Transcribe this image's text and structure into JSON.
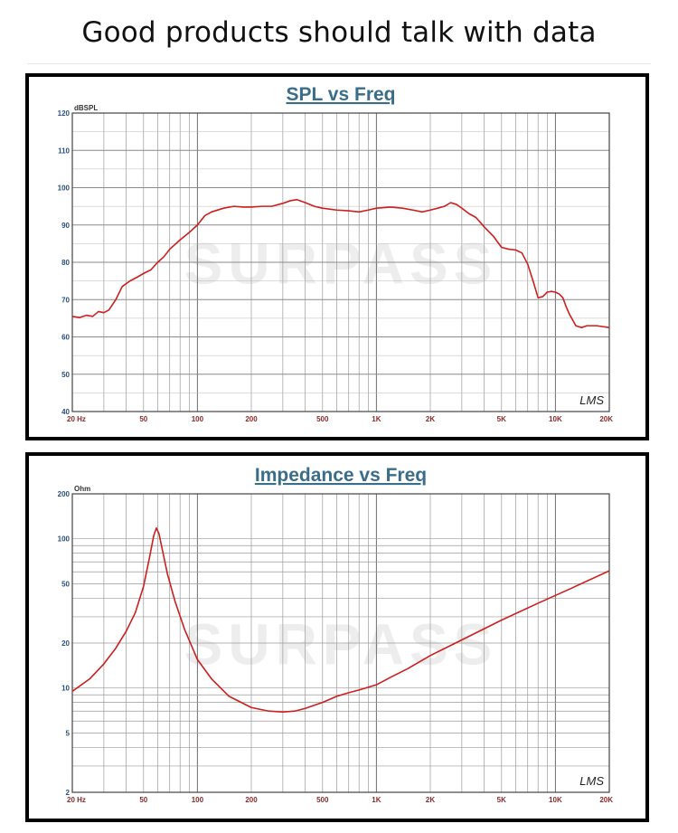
{
  "page": {
    "headline": "Good products should talk with data"
  },
  "watermark": {
    "text": "SURPASS"
  },
  "chart_data": [
    {
      "type": "line",
      "title": "SPL vs Freq",
      "ylabel": "dBSPL",
      "xlabel": "",
      "xscale": "log",
      "xlim": [
        20,
        20000
      ],
      "ylim": [
        40,
        120
      ],
      "grid": true,
      "brand_mark": "LMS",
      "xticks": [
        {
          "v": 20,
          "label": "20 Hz"
        },
        {
          "v": 50,
          "label": "50"
        },
        {
          "v": 100,
          "label": "100"
        },
        {
          "v": 200,
          "label": "200"
        },
        {
          "v": 500,
          "label": "500"
        },
        {
          "v": 1000,
          "label": "1K"
        },
        {
          "v": 2000,
          "label": "2K"
        },
        {
          "v": 5000,
          "label": "5K"
        },
        {
          "v": 10000,
          "label": "10K"
        },
        {
          "v": 20000,
          "label": "20K"
        }
      ],
      "yticks": [
        {
          "v": 40,
          "label": "40"
        },
        {
          "v": 50,
          "label": "50"
        },
        {
          "v": 60,
          "label": "60"
        },
        {
          "v": 70,
          "label": "70"
        },
        {
          "v": 80,
          "label": "80"
        },
        {
          "v": 90,
          "label": "90"
        },
        {
          "v": 100,
          "label": "100"
        },
        {
          "v": 110,
          "label": "110"
        },
        {
          "v": 120,
          "label": "120"
        }
      ],
      "series": [
        {
          "color": "#cc1f1f",
          "x": [
            20,
            22,
            24,
            26,
            28,
            30,
            32,
            35,
            38,
            42,
            46,
            50,
            55,
            60,
            65,
            70,
            80,
            90,
            100,
            110,
            120,
            140,
            160,
            180,
            200,
            230,
            260,
            300,
            330,
            360,
            400,
            450,
            500,
            600,
            700,
            800,
            900,
            1000,
            1200,
            1400,
            1600,
            1800,
            2000,
            2200,
            2400,
            2600,
            2800,
            3000,
            3300,
            3600,
            4000,
            4500,
            5000,
            5500,
            6000,
            6500,
            7000,
            7500,
            8000,
            8500,
            9000,
            9500,
            10000,
            10500,
            11000,
            11500,
            12000,
            12500,
            13000,
            14000,
            15000,
            17000,
            20000
          ],
          "y": [
            65.5,
            65.2,
            65.8,
            65.5,
            66.8,
            66.5,
            67.2,
            70.0,
            73.5,
            75.0,
            76.0,
            77.0,
            78.0,
            80.0,
            81.5,
            83.5,
            86.0,
            88.0,
            90.0,
            92.5,
            93.5,
            94.5,
            95.0,
            94.8,
            94.8,
            95.0,
            95.0,
            95.8,
            96.5,
            96.8,
            96.0,
            95.0,
            94.5,
            94.0,
            93.8,
            93.5,
            94.0,
            94.5,
            94.8,
            94.5,
            94.0,
            93.5,
            94.0,
            94.5,
            95.0,
            96.0,
            95.5,
            94.5,
            93.0,
            92.0,
            89.5,
            87.0,
            84.0,
            83.5,
            83.3,
            82.5,
            79.5,
            75.0,
            70.5,
            70.8,
            72.0,
            72.2,
            72.0,
            71.5,
            70.5,
            68.0,
            66.0,
            64.5,
            63.0,
            62.5,
            63.0,
            63.0,
            62.5
          ]
        }
      ]
    },
    {
      "type": "line",
      "title": "Impedance vs Freq",
      "ylabel": "Ohm",
      "xlabel": "",
      "xscale": "log",
      "yscale": "log",
      "xlim": [
        20,
        20000
      ],
      "ylim": [
        2,
        200
      ],
      "grid": true,
      "brand_mark": "LMS",
      "xticks": [
        {
          "v": 20,
          "label": "20 Hz"
        },
        {
          "v": 50,
          "label": "50"
        },
        {
          "v": 100,
          "label": "100"
        },
        {
          "v": 200,
          "label": "200"
        },
        {
          "v": 500,
          "label": "500"
        },
        {
          "v": 1000,
          "label": "1K"
        },
        {
          "v": 2000,
          "label": "2K"
        },
        {
          "v": 5000,
          "label": "5K"
        },
        {
          "v": 10000,
          "label": "10K"
        },
        {
          "v": 20000,
          "label": "20K"
        }
      ],
      "yticks": [
        {
          "v": 2,
          "label": "2"
        },
        {
          "v": 5,
          "label": "5"
        },
        {
          "v": 10,
          "label": "10"
        },
        {
          "v": 20,
          "label": "20"
        },
        {
          "v": 50,
          "label": "50"
        },
        {
          "v": 100,
          "label": "100"
        },
        {
          "v": 200,
          "label": "200"
        }
      ],
      "series": [
        {
          "color": "#cc1f1f",
          "x": [
            20,
            25,
            30,
            35,
            40,
            45,
            50,
            54,
            57,
            59,
            61,
            64,
            68,
            75,
            85,
            100,
            120,
            150,
            200,
            250,
            300,
            350,
            400,
            500,
            600,
            700,
            800,
            1000,
            1200,
            1500,
            2000,
            3000,
            5000,
            8000,
            12000,
            20000
          ],
          "y": [
            9.5,
            11.5,
            14.5,
            18.5,
            24.0,
            32.0,
            48.0,
            75.0,
            105.0,
            118.0,
            108.0,
            82.0,
            58.0,
            38.0,
            24.5,
            15.5,
            11.5,
            8.8,
            7.4,
            7.0,
            6.9,
            7.0,
            7.3,
            8.0,
            8.8,
            9.3,
            9.7,
            10.5,
            11.8,
            13.5,
            16.5,
            21.0,
            28.5,
            37.0,
            46.0,
            61.0
          ]
        }
      ]
    }
  ]
}
